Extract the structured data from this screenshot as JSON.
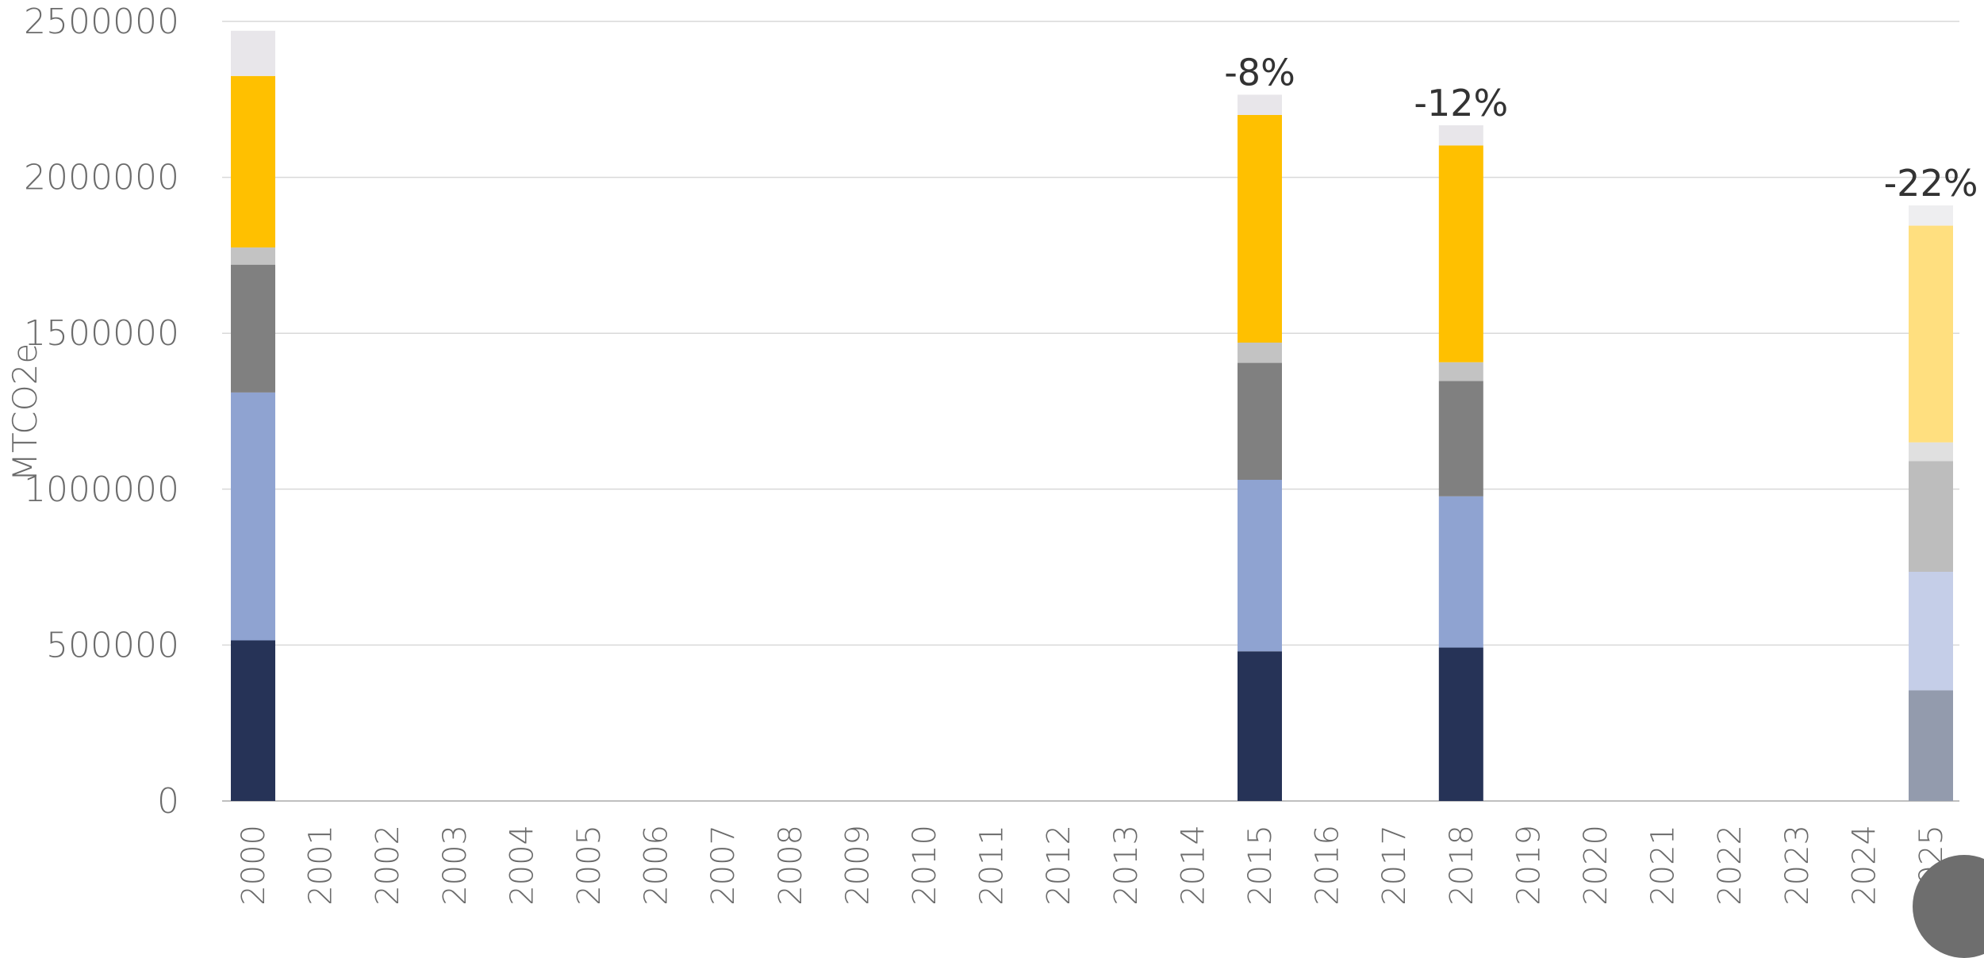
{
  "chart_data": {
    "type": "bar",
    "stacked": true,
    "ylabel": "MTCO2e",
    "xlabel": "",
    "ylim": [
      0,
      2500000
    ],
    "yticks": [
      0,
      500000,
      1000000,
      1500000,
      2000000,
      2500000
    ],
    "ytick_labels": [
      "0",
      "500000",
      "1000000",
      "1500000",
      "2000000",
      "2500000"
    ],
    "grid": true,
    "categories": [
      "2000",
      "2001",
      "2002",
      "2003",
      "2004",
      "2005",
      "2006",
      "2007",
      "2008",
      "2009",
      "2010",
      "2011",
      "2012",
      "2013",
      "2014",
      "2015",
      "2016",
      "2017",
      "2018",
      "2019",
      "2020",
      "2021",
      "2022",
      "2023",
      "2024",
      "2025"
    ],
    "series": [
      {
        "color": "#263357",
        "values": [
          515000,
          null,
          null,
          null,
          null,
          null,
          null,
          null,
          null,
          null,
          null,
          null,
          null,
          null,
          null,
          480000,
          null,
          null,
          492000,
          null,
          null,
          null,
          null,
          null,
          null,
          null
        ]
      },
      {
        "color": "#8fa3d1",
        "values": [
          795000,
          null,
          null,
          null,
          null,
          null,
          null,
          null,
          null,
          null,
          null,
          null,
          null,
          null,
          null,
          550000,
          null,
          null,
          485000,
          null,
          null,
          null,
          null,
          null,
          null,
          null
        ]
      },
      {
        "color": "#808080",
        "values": [
          410000,
          null,
          null,
          null,
          null,
          null,
          null,
          null,
          null,
          null,
          null,
          null,
          null,
          null,
          null,
          375000,
          null,
          null,
          370000,
          null,
          null,
          null,
          null,
          null,
          null,
          null
        ]
      },
      {
        "color": "#c3c3c3",
        "values": [
          55000,
          null,
          null,
          null,
          null,
          null,
          null,
          null,
          null,
          null,
          null,
          null,
          null,
          null,
          null,
          65000,
          null,
          null,
          60000,
          null,
          null,
          null,
          null,
          null,
          null,
          null
        ]
      },
      {
        "color": "#ffc000",
        "values": [
          550000,
          null,
          null,
          null,
          null,
          null,
          null,
          null,
          null,
          null,
          null,
          null,
          null,
          null,
          null,
          730000,
          null,
          null,
          695000,
          null,
          null,
          null,
          null,
          null,
          null,
          null
        ]
      },
      {
        "color": "#e8e6ea",
        "values": [
          145000,
          null,
          null,
          null,
          null,
          null,
          null,
          null,
          null,
          null,
          null,
          null,
          null,
          null,
          null,
          65000,
          null,
          null,
          65000,
          null,
          null,
          null,
          null,
          null,
          null,
          null
        ]
      }
    ],
    "projected_bar": {
      "category": "2025",
      "segments": [
        {
          "color": "#939bad",
          "value": 355000
        },
        {
          "color": "#c5cee8",
          "value": 380000
        },
        {
          "color": "#bdbdbd",
          "value": 355000
        },
        {
          "color": "#e0e0e0",
          "value": 60000
        },
        {
          "color": "#ffdf7f",
          "value": 695000
        },
        {
          "color": "#eeeef0",
          "value": 65000
        }
      ]
    },
    "annotations": [
      {
        "category": "2015",
        "text": "-8%"
      },
      {
        "category": "2018",
        "text": "-12%"
      },
      {
        "category": "2025",
        "text": "-22%"
      }
    ]
  }
}
